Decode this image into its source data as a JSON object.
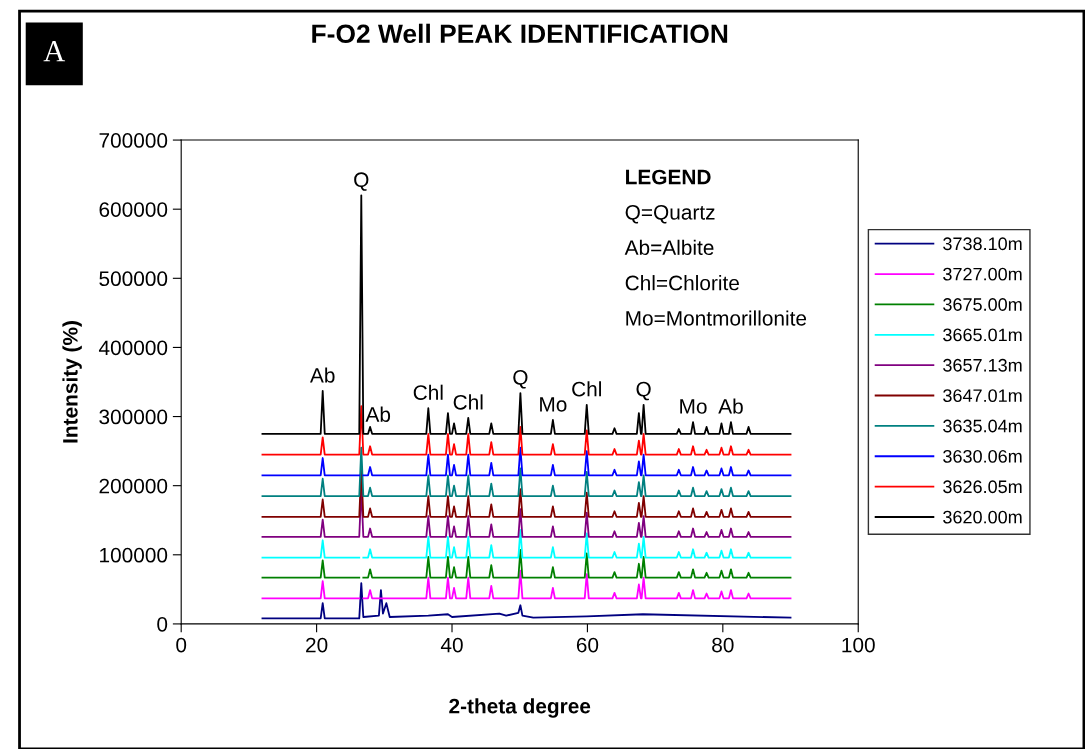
{
  "chart_data": {
    "type": "line",
    "title": "F-O2 Well PEAK IDENTIFICATION",
    "xlabel": "2-theta degree",
    "ylabel": "Intensity (%)",
    "xlim": [
      0,
      100
    ],
    "xticks": [
      0,
      20,
      40,
      60,
      80,
      100
    ],
    "ylim": [
      0,
      700000
    ],
    "yticks": [
      0,
      100000,
      200000,
      300000,
      400000,
      500000,
      600000,
      700000
    ],
    "grid": false,
    "legend": "right",
    "marker": "none",
    "line_style": "solid",
    "x": [
      12,
      20.6,
      20.9,
      21.2,
      26.3,
      26.6,
      26.9,
      27.6,
      27.9,
      28.2,
      36.2,
      36.5,
      36.8,
      39.1,
      39.4,
      39.7,
      40.0,
      40.3,
      40.6,
      42.1,
      42.4,
      42.7,
      45.5,
      45.8,
      46.1,
      49.8,
      50.1,
      50.4,
      54.6,
      54.9,
      55.2,
      59.6,
      59.9,
      60.2,
      63.7,
      64.0,
      64.3,
      67.3,
      67.6,
      67.9,
      68.0,
      68.3,
      68.6,
      73.2,
      73.5,
      73.8,
      75.3,
      75.6,
      75.9,
      77.3,
      77.6,
      77.9,
      79.5,
      79.8,
      80.1,
      80.9,
      81.2,
      81.5,
      83.5,
      83.8,
      84.1,
      90
    ],
    "series": [
      {
        "name": "3738.10m",
        "color": "#000080",
        "x": [
          12,
          20.6,
          20.9,
          21.2,
          26.3,
          26.6,
          26.9,
          29.2,
          29.5,
          29.8,
          30.3,
          30.8,
          36.5,
          39.4,
          40.0,
          47,
          48,
          49.8,
          50.1,
          50.4,
          52,
          59.9,
          68.2,
          90
        ],
        "values": [
          8000,
          8000,
          30000,
          8000,
          8000,
          59000,
          10000,
          12000,
          49000,
          15000,
          30000,
          10000,
          12000,
          14000,
          10000,
          15000,
          12000,
          16000,
          27000,
          12000,
          9000,
          11000,
          14000,
          9000
        ]
      },
      {
        "name": "3727.00m",
        "color": "#ff00ff",
        "values": [
          37000,
          37000,
          62000,
          37000,
          37000,
          null,
          37000,
          37000,
          49000,
          37000,
          37000,
          67000,
          37000,
          37000,
          67000,
          37000,
          37000,
          52000,
          37000,
          37000,
          67000,
          37000,
          37000,
          55000,
          37000,
          37000,
          77000,
          37000,
          37000,
          52000,
          37000,
          37000,
          72000,
          37000,
          37000,
          45000,
          37000,
          37000,
          57000,
          37000,
          37000,
          67000,
          37000,
          37000,
          45000,
          37000,
          37000,
          49000,
          37000,
          37000,
          44000,
          37000,
          37000,
          47000,
          37000,
          37000,
          49000,
          37000,
          37000,
          44000,
          37000,
          37000
        ]
      },
      {
        "name": "3675.00m",
        "color": "#008000",
        "values": [
          67000,
          67000,
          92000,
          67000,
          67000,
          null,
          67000,
          67000,
          79000,
          67000,
          67000,
          97000,
          67000,
          67000,
          97000,
          67000,
          67000,
          82000,
          67000,
          67000,
          97000,
          67000,
          67000,
          85000,
          67000,
          67000,
          107000,
          67000,
          67000,
          82000,
          67000,
          67000,
          102000,
          67000,
          67000,
          75000,
          67000,
          67000,
          87000,
          67000,
          67000,
          97000,
          67000,
          67000,
          75000,
          67000,
          67000,
          79000,
          67000,
          67000,
          74000,
          67000,
          67000,
          77000,
          67000,
          67000,
          79000,
          67000,
          67000,
          74000,
          67000,
          67000
        ]
      },
      {
        "name": "3665.01m",
        "color": "#00ffff",
        "values": [
          96000,
          96000,
          121000,
          96000,
          96000,
          null,
          96000,
          96000,
          108000,
          96000,
          96000,
          126000,
          96000,
          96000,
          126000,
          96000,
          96000,
          111000,
          96000,
          96000,
          126000,
          96000,
          96000,
          114000,
          96000,
          96000,
          136000,
          96000,
          96000,
          111000,
          96000,
          96000,
          131000,
          96000,
          96000,
          104000,
          96000,
          96000,
          116000,
          96000,
          96000,
          126000,
          96000,
          96000,
          104000,
          96000,
          96000,
          108000,
          96000,
          96000,
          103000,
          96000,
          96000,
          106000,
          96000,
          96000,
          108000,
          96000,
          96000,
          103000,
          96000,
          96000
        ]
      },
      {
        "name": "3657.13m",
        "color": "#800080",
        "values": [
          126000,
          126000,
          151000,
          126000,
          126000,
          196000,
          126000,
          126000,
          138000,
          126000,
          126000,
          156000,
          126000,
          126000,
          156000,
          126000,
          126000,
          141000,
          126000,
          126000,
          156000,
          126000,
          126000,
          144000,
          126000,
          126000,
          166000,
          126000,
          126000,
          141000,
          126000,
          126000,
          161000,
          126000,
          126000,
          134000,
          126000,
          126000,
          146000,
          126000,
          126000,
          156000,
          126000,
          126000,
          134000,
          126000,
          126000,
          138000,
          126000,
          126000,
          133000,
          126000,
          126000,
          136000,
          126000,
          126000,
          138000,
          126000,
          126000,
          133000,
          126000,
          126000
        ]
      },
      {
        "name": "3647.01m",
        "color": "#800000",
        "values": [
          155000,
          155000,
          180000,
          155000,
          155000,
          225000,
          155000,
          155000,
          167000,
          155000,
          155000,
          185000,
          155000,
          155000,
          185000,
          155000,
          155000,
          170000,
          155000,
          155000,
          185000,
          155000,
          155000,
          173000,
          155000,
          155000,
          195000,
          155000,
          155000,
          170000,
          155000,
          155000,
          190000,
          155000,
          155000,
          163000,
          155000,
          155000,
          175000,
          155000,
          155000,
          185000,
          155000,
          155000,
          163000,
          155000,
          155000,
          167000,
          155000,
          155000,
          162000,
          155000,
          155000,
          165000,
          155000,
          155000,
          167000,
          155000,
          155000,
          162000,
          155000,
          155000
        ]
      },
      {
        "name": "3635.04m",
        "color": "#008080",
        "values": [
          185000,
          185000,
          210000,
          185000,
          185000,
          255000,
          185000,
          185000,
          197000,
          185000,
          185000,
          215000,
          185000,
          185000,
          215000,
          185000,
          185000,
          200000,
          185000,
          185000,
          215000,
          185000,
          185000,
          203000,
          185000,
          185000,
          225000,
          185000,
          185000,
          200000,
          185000,
          185000,
          220000,
          185000,
          185000,
          193000,
          185000,
          185000,
          205000,
          185000,
          185000,
          215000,
          185000,
          185000,
          193000,
          185000,
          185000,
          197000,
          185000,
          185000,
          192000,
          185000,
          185000,
          195000,
          185000,
          185000,
          197000,
          185000,
          185000,
          192000,
          185000,
          185000
        ]
      },
      {
        "name": "3630.06m",
        "color": "#0000ff",
        "values": [
          215000,
          215000,
          240000,
          215000,
          215000,
          null,
          215000,
          215000,
          227000,
          215000,
          215000,
          245000,
          215000,
          215000,
          245000,
          215000,
          215000,
          230000,
          215000,
          215000,
          245000,
          215000,
          215000,
          233000,
          215000,
          215000,
          255000,
          215000,
          215000,
          230000,
          215000,
          215000,
          250000,
          215000,
          215000,
          223000,
          215000,
          215000,
          235000,
          215000,
          215000,
          245000,
          215000,
          215000,
          223000,
          215000,
          215000,
          227000,
          215000,
          215000,
          222000,
          215000,
          215000,
          225000,
          215000,
          215000,
          227000,
          215000,
          215000,
          222000,
          215000,
          215000
        ]
      },
      {
        "name": "3626.05m",
        "color": "#ff0000",
        "values": [
          245000,
          245000,
          270000,
          245000,
          245000,
          315000,
          245000,
          245000,
          257000,
          245000,
          245000,
          275000,
          245000,
          245000,
          275000,
          245000,
          245000,
          260000,
          245000,
          245000,
          275000,
          245000,
          245000,
          263000,
          245000,
          245000,
          285000,
          245000,
          245000,
          260000,
          245000,
          245000,
          280000,
          245000,
          245000,
          253000,
          245000,
          245000,
          265000,
          245000,
          245000,
          275000,
          245000,
          245000,
          253000,
          245000,
          245000,
          257000,
          245000,
          245000,
          252000,
          245000,
          245000,
          255000,
          245000,
          245000,
          257000,
          245000,
          245000,
          252000,
          245000,
          245000
        ]
      },
      {
        "name": "3620.00m",
        "color": "#000000",
        "values": [
          275000,
          275000,
          337000,
          275000,
          275000,
          620000,
          275000,
          275000,
          285000,
          275000,
          275000,
          312000,
          275000,
          275000,
          305000,
          275000,
          275000,
          290000,
          275000,
          275000,
          298000,
          275000,
          275000,
          290000,
          275000,
          275000,
          334000,
          275000,
          275000,
          295000,
          275000,
          275000,
          317000,
          275000,
          275000,
          283000,
          275000,
          275000,
          305000,
          275000,
          275000,
          317000,
          275000,
          275000,
          282000,
          275000,
          275000,
          292000,
          275000,
          275000,
          285000,
          275000,
          275000,
          290000,
          275000,
          275000,
          292000,
          275000,
          275000,
          285000,
          275000,
          275000
        ]
      }
    ],
    "annotations": [
      "A",
      "LEGEND",
      "Q=Quartz",
      "Ab=Albite",
      "Chl=Chlorite",
      "Mo=Montmorillonite",
      {
        "text": "Ab",
        "x": 20.9,
        "y": 337000
      },
      {
        "text": "Q",
        "x": 26.6,
        "y": 620000
      },
      "Ab",
      {
        "text": "Chl",
        "x": 36.5,
        "y": 312000
      },
      {
        "text": "Chl",
        "x": 42.4,
        "y": 298000
      },
      {
        "text": "Q",
        "x": 50.1,
        "y": 334000
      },
      {
        "text": "Mo",
        "x": 54.9,
        "y": 295000
      },
      {
        "text": "Chl",
        "x": 59.9,
        "y": 317000
      },
      {
        "text": "Q",
        "x": 68.3,
        "y": 317000
      },
      {
        "text": "Mo",
        "x": 75.6,
        "y": 292000
      },
      {
        "text": "Ab",
        "x": 81.2,
        "y": 292000
      }
    ]
  }
}
